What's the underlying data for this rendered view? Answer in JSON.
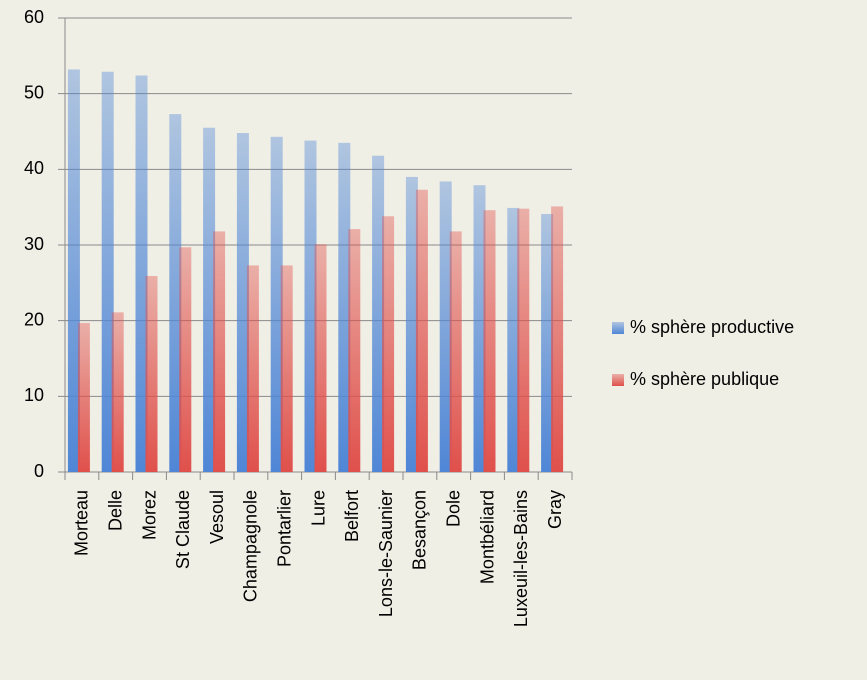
{
  "chart_data": {
    "type": "bar",
    "categories": [
      "Morteau",
      "Delle",
      "Morez",
      "St Claude",
      "Vesoul",
      "Champagnole",
      "Pontarlier",
      "Lure",
      "Belfort",
      "Lons-le-Saunier",
      "Besançon",
      "Dole",
      "Montbéliard",
      "Luxeuil-les-Bains",
      "Gray"
    ],
    "series": [
      {
        "name": "% sphère productive",
        "color": "#4f86d6",
        "values": [
          53.2,
          52.9,
          52.4,
          47.3,
          45.5,
          44.8,
          44.3,
          43.8,
          43.5,
          41.8,
          39.0,
          38.4,
          37.9,
          34.9,
          34.1
        ]
      },
      {
        "name": "% sphère publique",
        "color": "#e0504b",
        "values": [
          19.7,
          21.1,
          25.9,
          29.7,
          31.8,
          27.3,
          27.3,
          30.1,
          32.1,
          33.8,
          37.3,
          31.8,
          34.6,
          34.8,
          35.1
        ]
      }
    ],
    "ylim": [
      0,
      60
    ],
    "yticks": [
      0,
      10,
      20,
      30,
      40,
      50,
      60
    ],
    "grid": true,
    "legend": "right"
  }
}
